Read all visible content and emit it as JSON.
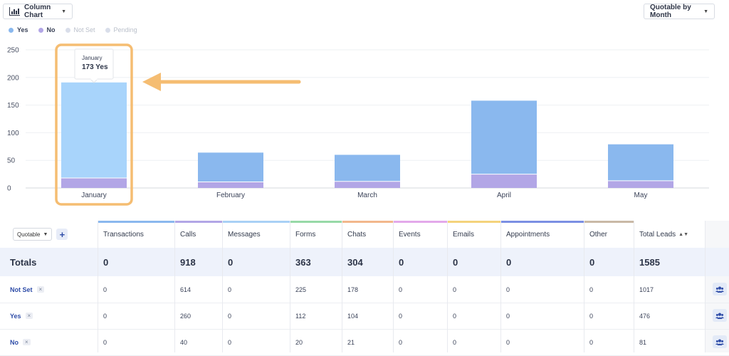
{
  "toolbar": {
    "chart_type_label": "Column Chart",
    "group_by_label": "Quotable by Month"
  },
  "legend": [
    {
      "label": "Yes",
      "color": "#8ab8ee",
      "state": "on"
    },
    {
      "label": "No",
      "color": "#b2a6e6",
      "state": "on"
    },
    {
      "label": "Not Set",
      "color": "#d9deea",
      "state": "off"
    },
    {
      "label": "Pending",
      "color": "#d9deea",
      "state": "off"
    }
  ],
  "chart_data": {
    "type": "bar",
    "stacked": true,
    "categories": [
      "January",
      "February",
      "March",
      "April",
      "May"
    ],
    "series": [
      {
        "name": "No",
        "color": "#b2a6e6",
        "values": [
          18,
          11,
          12,
          25,
          13
        ]
      },
      {
        "name": "Yes",
        "color": "#8ab8ee",
        "values": [
          173,
          53,
          48,
          133,
          66
        ]
      }
    ],
    "highlight_color": "#a8d4fb",
    "highlight_index": 0,
    "ylim": [
      0,
      250
    ],
    "yticks": [
      0,
      50,
      100,
      150,
      200,
      250
    ],
    "grid": true,
    "tooltip": {
      "title": "January",
      "value": "173 Yes"
    }
  },
  "annotation": {
    "color": "#f5bd72"
  },
  "table": {
    "filter_label": "Quotable",
    "add_label": "+",
    "columns": [
      {
        "label": "Transactions",
        "color": "#8ab8ee"
      },
      {
        "label": "Calls",
        "color": "#b2a6e6"
      },
      {
        "label": "Messages",
        "color": "#a9d0f5"
      },
      {
        "label": "Forms",
        "color": "#97d9a7"
      },
      {
        "label": "Chats",
        "color": "#f2b78c"
      },
      {
        "label": "Events",
        "color": "#e3a9ea"
      },
      {
        "label": "Emails",
        "color": "#f4d37c"
      },
      {
        "label": "Appointments",
        "color": "#7b8fe3"
      },
      {
        "label": "Other",
        "color": "#c9b9a6"
      },
      {
        "label": "Total Leads",
        "color": ""
      }
    ],
    "sort_indicator": "▲▼",
    "totals": {
      "label": "Totals",
      "values": [
        "0",
        "918",
        "0",
        "363",
        "304",
        "0",
        "0",
        "0",
        "0",
        "1585"
      ]
    },
    "rows": [
      {
        "label": "Not Set",
        "remove": "×",
        "values": [
          "0",
          "614",
          "0",
          "225",
          "178",
          "0",
          "0",
          "0",
          "0",
          "1017"
        ]
      },
      {
        "label": "Yes",
        "remove": "×",
        "values": [
          "0",
          "260",
          "0",
          "112",
          "104",
          "0",
          "0",
          "0",
          "0",
          "476"
        ]
      },
      {
        "label": "No",
        "remove": "×",
        "values": [
          "0",
          "40",
          "0",
          "20",
          "21",
          "0",
          "0",
          "0",
          "0",
          "81"
        ]
      }
    ]
  }
}
